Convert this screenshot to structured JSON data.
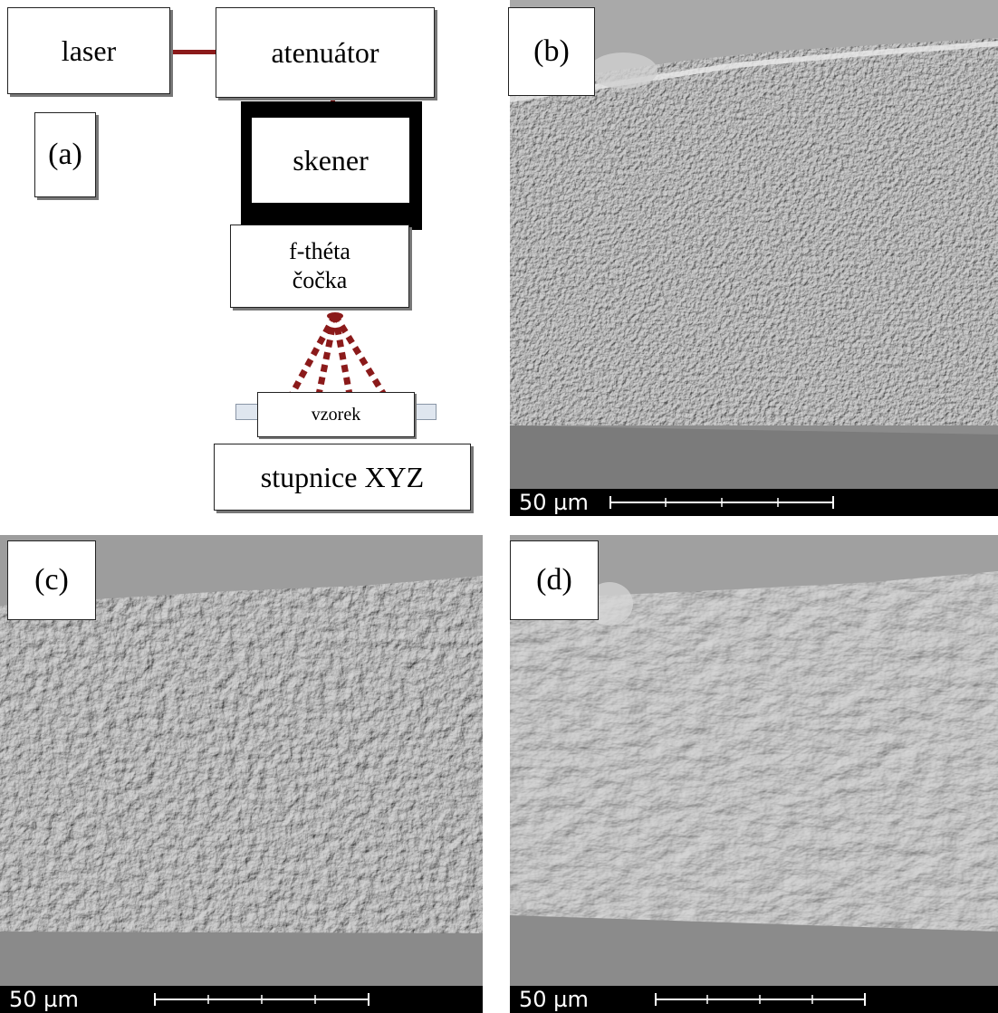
{
  "panel_a": {
    "label": "(a)",
    "laser": "laser",
    "attenuator": "atenuátor",
    "scanner": "skener",
    "lens_line1": "f-théta",
    "lens_line2": "čočka",
    "sample": "vzorek",
    "stage": "stupnice XYZ",
    "beam_color": "#8b1a1a"
  },
  "panel_b": {
    "label": "(b)",
    "scale": "50 µm"
  },
  "panel_c": {
    "label": "(c)",
    "scale": "50 µm"
  },
  "panel_d": {
    "label": "(d)",
    "scale": "50 µm"
  }
}
